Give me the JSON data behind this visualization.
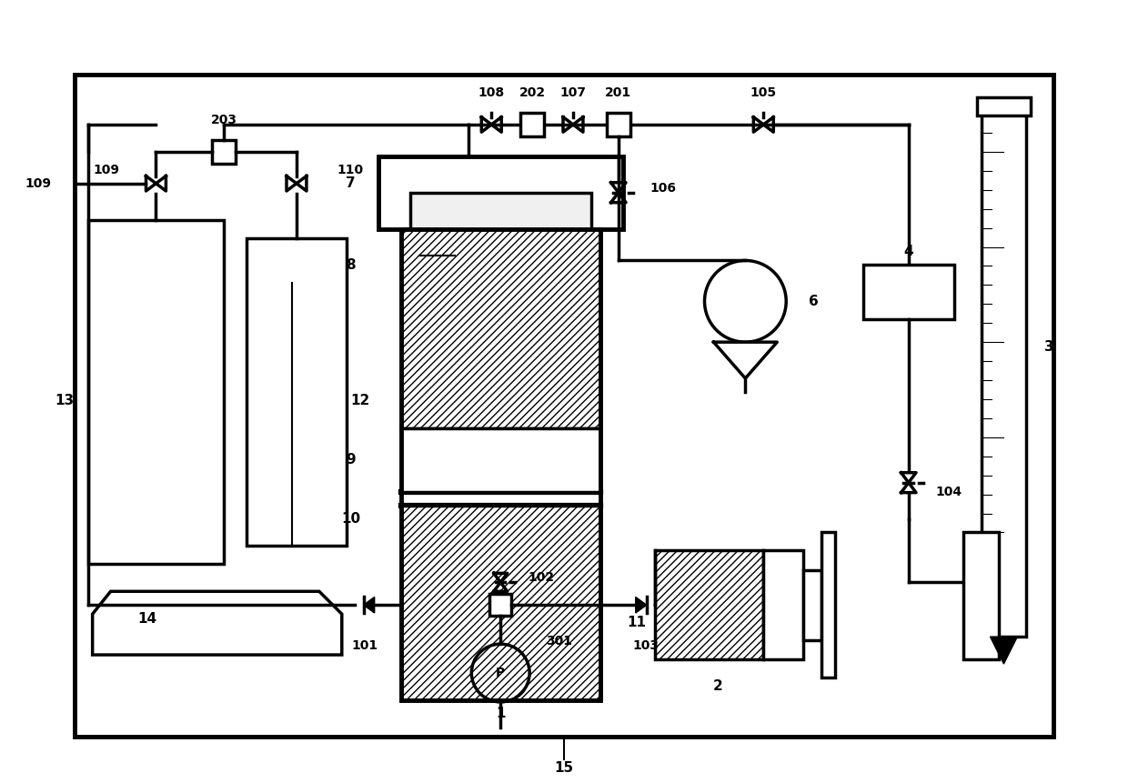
{
  "lw": 2.5,
  "lw_thick": 3.5,
  "lw_thin": 1.0,
  "c": "#000000",
  "fig_w": 12.4,
  "fig_h": 8.61,
  "xmax": 124.0,
  "ymax": 86.1
}
